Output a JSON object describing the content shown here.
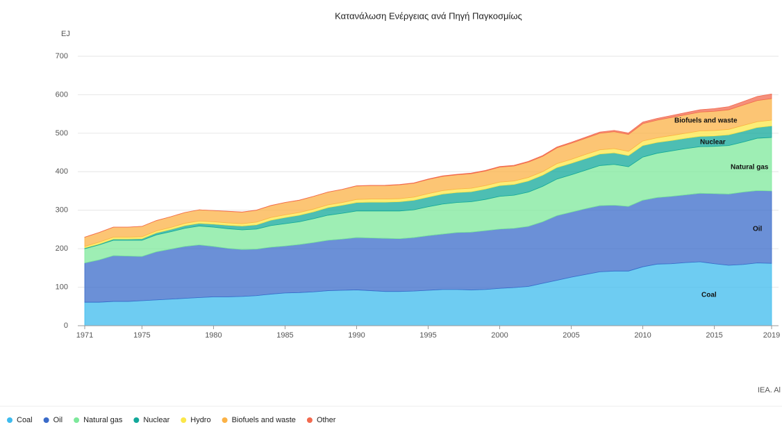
{
  "chart_data": {
    "type": "stacked_area",
    "title": "Κατανάλωση Ενέργειας ανά Πηγή Παγκοσμίως",
    "y_label": "EJ",
    "source": "IEA. Al",
    "x": [
      1971,
      1972,
      1973,
      1974,
      1975,
      1976,
      1977,
      1978,
      1979,
      1980,
      1981,
      1982,
      1983,
      1984,
      1985,
      1986,
      1987,
      1988,
      1989,
      1990,
      1991,
      1992,
      1993,
      1994,
      1995,
      1996,
      1997,
      1998,
      1999,
      2000,
      2001,
      2002,
      2003,
      2004,
      2005,
      2006,
      2007,
      2008,
      2009,
      2010,
      2011,
      2012,
      2013,
      2014,
      2015,
      2016,
      2017,
      2018,
      2019
    ],
    "xlim": [
      1971,
      2019
    ],
    "xticks": [
      1971,
      1975,
      1980,
      1985,
      1990,
      1995,
      2000,
      2005,
      2010,
      2015,
      2019
    ],
    "ylim": [
      0,
      700
    ],
    "yticks": [
      0,
      100,
      200,
      300,
      400,
      500,
      600,
      700
    ],
    "grid": true,
    "legend": "bottom-left",
    "series": [
      {
        "name": "Coal",
        "color": "#3ebbee",
        "values": [
          61,
          61,
          63,
          63,
          65,
          67,
          69,
          71,
          73,
          75,
          75,
          76,
          78,
          82,
          85,
          86,
          88,
          91,
          92,
          93,
          91,
          89,
          89,
          90,
          92,
          94,
          94,
          93,
          94,
          97,
          99,
          102,
          110,
          118,
          126,
          133,
          140,
          142,
          142,
          153,
          160,
          161,
          164,
          166,
          161,
          157,
          159,
          163,
          162
        ]
      },
      {
        "name": "Oil",
        "color": "#3a6bc9",
        "values": [
          102,
          110,
          119,
          118,
          115,
          125,
          130,
          135,
          137,
          131,
          126,
          122,
          121,
          122,
          122,
          125,
          128,
          131,
          133,
          136,
          137,
          138,
          137,
          139,
          142,
          144,
          148,
          150,
          153,
          154,
          154,
          156,
          160,
          168,
          169,
          171,
          172,
          171,
          168,
          173,
          173,
          175,
          176,
          178,
          182,
          185,
          188,
          188,
          188
        ]
      },
      {
        "name": "Natural gas",
        "color": "#7de89b",
        "values": [
          37,
          39,
          40,
          41,
          42,
          44,
          45,
          47,
          49,
          50,
          51,
          51,
          52,
          56,
          58,
          59,
          62,
          65,
          67,
          69,
          70,
          71,
          72,
          72,
          75,
          78,
          78,
          79,
          81,
          85,
          86,
          89,
          92,
          95,
          97,
          100,
          104,
          106,
          103,
          112,
          115,
          118,
          120,
          121,
          123,
          126,
          130,
          136,
          139
        ]
      },
      {
        "name": "Nuclear",
        "color": "#12a89a",
        "values": [
          2,
          2,
          3,
          3,
          4,
          5,
          6,
          7,
          7,
          8,
          9,
          10,
          11,
          14,
          16,
          17,
          18,
          20,
          21,
          22,
          23,
          23,
          24,
          25,
          25,
          26,
          26,
          26,
          27,
          28,
          28,
          29,
          29,
          30,
          30,
          30,
          30,
          30,
          29,
          30,
          28,
          27,
          27,
          27,
          27,
          28,
          28,
          28,
          30
        ]
      },
      {
        "name": "Hydro",
        "color": "#fbe74a",
        "values": [
          4,
          5,
          5,
          5,
          5,
          5,
          5,
          6,
          6,
          6,
          6,
          6,
          7,
          7,
          7,
          7,
          7,
          7,
          7,
          8,
          8,
          8,
          8,
          8,
          9,
          9,
          9,
          9,
          9,
          9,
          9,
          9,
          9,
          10,
          10,
          11,
          11,
          11,
          11,
          12,
          12,
          13,
          13,
          14,
          14,
          14,
          15,
          15,
          15
        ]
      },
      {
        "name": "Biofuels and waste",
        "color": "#fbb246",
        "values": [
          24,
          25,
          26,
          26,
          27,
          27,
          28,
          28,
          29,
          29,
          30,
          30,
          31,
          31,
          32,
          32,
          33,
          33,
          34,
          35,
          35,
          35,
          36,
          36,
          37,
          37,
          37,
          38,
          38,
          39,
          39,
          40,
          40,
          41,
          42,
          42,
          43,
          44,
          44,
          45,
          46,
          47,
          48,
          49,
          50,
          51,
          53,
          55,
          56
        ]
      },
      {
        "name": "Other",
        "color": "#f26a4f",
        "values": [
          0.1,
          0.1,
          0.1,
          0.1,
          0.1,
          0.1,
          0.1,
          0.1,
          0.1,
          0.3,
          0.3,
          0.3,
          0.3,
          0.3,
          0.3,
          0.3,
          0.3,
          0.3,
          0.3,
          0.6,
          0.7,
          0.8,
          0.9,
          1,
          1.1,
          1.2,
          1.3,
          1.4,
          1.5,
          1.5,
          1.7,
          1.9,
          2.1,
          2.3,
          2.5,
          2.8,
          3.1,
          3.4,
          3.7,
          4,
          4.5,
          5,
          5.5,
          6,
          7,
          8,
          9,
          10.5,
          12
        ]
      }
    ]
  }
}
